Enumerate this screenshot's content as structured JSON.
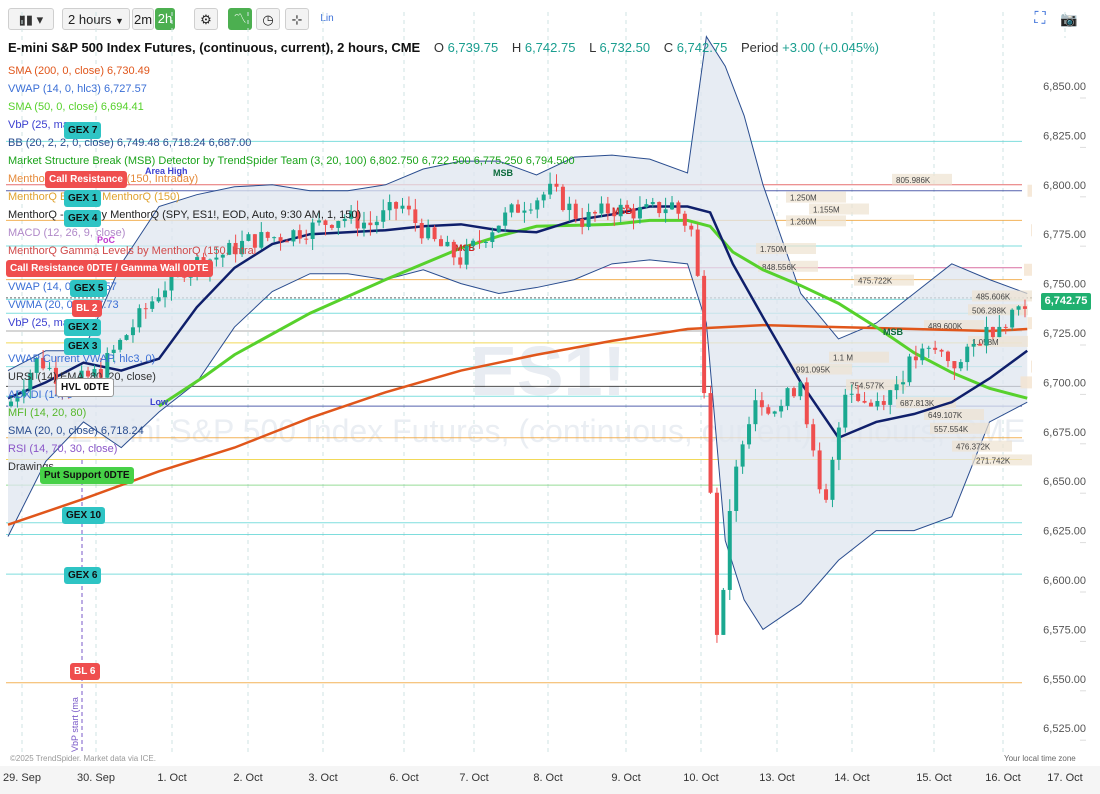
{
  "toolbar": {
    "chart_type_icon": "candles-icon",
    "interval": "2 hours",
    "quick_intervals": [
      "2m",
      "2h"
    ],
    "settings_icon": "gear-icon",
    "tools": [
      "pattern-icon",
      "clock-icon",
      "crosshair-icon"
    ],
    "scale_label": "Lin",
    "expand_icon": "expand-icon",
    "camera_icon": "camera-icon"
  },
  "header": {
    "title": "E-mini S&P 500 Index Futures, (continuous, current), 2 hours, CME",
    "o_label": "O",
    "o_value": "6,739.75",
    "h_label": "H",
    "h_value": "6,742.75",
    "l_label": "L",
    "l_value": "6,732.50",
    "c_label": "C",
    "c_value": "6,742.75",
    "period_label": "Period",
    "period_value": "+3.00 (+0.045%)"
  },
  "legend": [
    {
      "text": "SMA (200, 0, close)",
      "value": "6,730.49",
      "color": "#e0561b"
    },
    {
      "text": "VWAP (14, 0, hlc3)",
      "value": "6,727.57",
      "color": "#3b6fd6"
    },
    {
      "text": "SMA (50, 0, close)",
      "value": "6,694.41",
      "color": "#57d12c"
    },
    {
      "text": "VbP (25, ma",
      "value": "",
      "color": "#3b3fd0"
    },
    {
      "text": "BB (20, 2, 2, 0, close)",
      "value": "6,749.48 6,718.24 6,687.00",
      "color": "#2a4d8f"
    },
    {
      "text": "Market Structure Break (MSB) Detector by TrendSpider Team (3, 20, 100)",
      "value": "6,802.750 6,722.500 6,775.250 6,794.500",
      "color": "#1aa31a"
    },
    {
      "text": "MenthorQ",
      "value": "by MenthorQ (150, Intraday)",
      "color": "#e58a3a"
    },
    {
      "text": "MenthorQ Bl",
      "value": "es by MenthorQ (150)",
      "color": "#e0a330"
    },
    {
      "text": "MenthorQ -",
      "value": "sions by MenthorQ (SPY, ES1!, EOD, Auto, 9:30 AM, 1, 150)",
      "color": "#222222"
    },
    {
      "text": "MACD (12, 26, 9, close)",
      "value": "",
      "color": "#b088c8"
    },
    {
      "text": "MenthorQ Gamma Levels by MenthorQ (150, Intra",
      "value": "",
      "color": "#d04a4a"
    },
    {
      "text": "",
      "value": "",
      "color": "#333"
    },
    {
      "text": "VWAP (14, 0",
      "value": "6,727.57",
      "color": "#3b6fd6"
    },
    {
      "text": "VWMA (20, 0",
      "value": "6,717.73",
      "color": "#3b6fd6"
    },
    {
      "text": "VbP (25, ma",
      "value": "",
      "color": "#3b3fd0"
    },
    {
      "text": "",
      "value": "",
      "color": "#333"
    },
    {
      "text": "VWAP",
      "value": "Current VWAP, hlc3, 0)",
      "color": "#3b6fd6"
    },
    {
      "text": "URSI (14)",
      "value": "EMA, 80, 20, close)",
      "color": "#333"
    },
    {
      "text": "ADXDI (14, 3",
      "value": "",
      "color": "#3b6fd6"
    },
    {
      "text": "MFI (14, 20, 80)",
      "value": "",
      "color": "#57b82c"
    },
    {
      "text": "SMA (20, 0, close)",
      "value": "6,718.24",
      "color": "#2a4d8f"
    },
    {
      "text": "RSI (14, 70, 30, close)",
      "value": "",
      "color": "#8a55c8"
    },
    {
      "text": "Drawings",
      "value": "",
      "color": "#333"
    }
  ],
  "level_labels": [
    {
      "text": "GEX 7",
      "bg": "#2ec4c4",
      "fg": "#111"
    },
    {
      "text": "Call Resistance",
      "bg": "#ef4e4e",
      "fg": "#fff"
    },
    {
      "text": "GEX 1",
      "bg": "#2ec4c4",
      "fg": "#111"
    },
    {
      "text": "GEX 4",
      "bg": "#2ec4c4",
      "fg": "#111"
    },
    {
      "text": "Call Resistance 0DTE / Gamma Wall 0DTE",
      "bg": "#ef4e4e",
      "fg": "#fff"
    },
    {
      "text": "GEX 5",
      "bg": "#2ec4c4",
      "fg": "#111"
    },
    {
      "text": "BL 2",
      "bg": "#ef4e4e",
      "fg": "#fff"
    },
    {
      "text": "GEX 2",
      "bg": "#2ec4c4",
      "fg": "#111"
    },
    {
      "text": "GEX 3",
      "bg": "#2ec4c4",
      "fg": "#111"
    },
    {
      "text": "HVL 0DTE",
      "bg": "#ffffff",
      "fg": "#111"
    },
    {
      "text": "Put Support 0DTE",
      "bg": "#47d147",
      "fg": "#111"
    },
    {
      "text": "GEX 10",
      "bg": "#2ec4c4",
      "fg": "#111"
    },
    {
      "text": "GEX 6",
      "bg": "#2ec4c4",
      "fg": "#111"
    },
    {
      "text": "BL 6",
      "bg": "#ef4e4e",
      "fg": "#fff"
    }
  ],
  "annotations": {
    "area_high": "Area High",
    "poc": "PoC",
    "msb": "MSB",
    "low": "Low",
    "watermark": "ES1!",
    "watermark_sub": "E-mini S&P 500 Index Futures, (continuous, current), 2 hours, CME",
    "vbp_start": "VbP start (ma",
    "copyright": "©2025 TrendSpider. Market data via ICE.",
    "local_time": "Your local time zone"
  },
  "volume_labels": [
    "805.986K",
    "1.250M",
    "1.155M",
    "1.260M",
    "1.750M",
    "848.556K",
    "475.722K",
    "485.606K",
    "506.288K",
    "489.600K",
    "1.058M",
    "1.1 M",
    "991.095K",
    "754.577K",
    "687.813K",
    "649.107K",
    "557.554K",
    "476.372K",
    "271.742K"
  ],
  "last_price": "6,742.75",
  "colors": {
    "up": "#1aa890",
    "down": "#ef4e4e",
    "sma200": "#e0561b",
    "sma50": "#57d12c",
    "sma20": "#0f1f6b",
    "bb": "#2a4d8f",
    "vwap": "#3b6fd6",
    "price_tag": "#20b070"
  },
  "chart_data": {
    "type": "line",
    "title": "E-mini S&P 500 Index Futures, (continuous, current), 2 hours, CME",
    "x_tick_labels": [
      "29. Sep",
      "30. Sep",
      "1. Oct",
      "2. Oct",
      "3. Oct",
      "6. Oct",
      "7. Oct",
      "8. Oct",
      "9. Oct",
      "10. Oct",
      "13. Oct",
      "14. Oct",
      "15. Oct",
      "16. Oct",
      "17. Oct"
    ],
    "y_tick_labels": [
      "6,850.00",
      "6,825.00",
      "6,800.00",
      "6,775.00",
      "6,750.00",
      "6,725.00",
      "6,700.00",
      "6,675.00",
      "6,650.00",
      "6,625.00",
      "6,600.00",
      "6,575.00",
      "6,550.00",
      "6,525.00"
    ],
    "ylim": [
      6520,
      6870
    ],
    "xlim": [
      0,
      14.5
    ],
    "series": [
      {
        "name": "SMA (200, 0, close)",
        "x": [
          0,
          1,
          2,
          3,
          4,
          5,
          6,
          7,
          8,
          9,
          10,
          11,
          12,
          13,
          13.5
        ],
        "values": [
          6628,
          6641,
          6655,
          6667,
          6682,
          6695,
          6706,
          6714,
          6721,
          6727,
          6729,
          6728,
          6727,
          6726,
          6727
        ]
      },
      {
        "name": "SMA (50, 0, close)",
        "x": [
          2,
          2.6,
          3,
          4,
          5,
          6,
          6.5,
          7,
          8,
          8.5,
          9,
          9.3,
          9.6,
          10,
          10.5,
          11,
          11.5,
          12,
          12.5,
          13,
          13.5
        ],
        "values": [
          6688,
          6703,
          6714,
          6735,
          6752,
          6768,
          6774,
          6779,
          6780,
          6782,
          6782,
          6779,
          6766,
          6757,
          6749,
          6740,
          6728,
          6715,
          6705,
          6697,
          6692
        ]
      },
      {
        "name": "SMA (20, 0, close)",
        "x": [
          0,
          0.5,
          1,
          1.5,
          2,
          2.5,
          3,
          3.5,
          4,
          4.5,
          5,
          5.5,
          6,
          6.5,
          7,
          7.5,
          8,
          8.5,
          9,
          9.3,
          9.6,
          10,
          10.5,
          11,
          11.5,
          12,
          12.5,
          13,
          13.5
        ],
        "values": [
          6692,
          6700,
          6710,
          6706,
          6712,
          6738,
          6758,
          6770,
          6775,
          6776,
          6777,
          6779,
          6780,
          6777,
          6776,
          6782,
          6785,
          6789,
          6789,
          6786,
          6760,
          6733,
          6700,
          6672,
          6680,
          6684,
          6690,
          6702,
          6716
        ]
      },
      {
        "name": "Close",
        "x": [
          0,
          0.4,
          0.8,
          1.2,
          1.6,
          2,
          2.4,
          2.8,
          3.2,
          3.6,
          4,
          4.4,
          4.8,
          5.2,
          5.6,
          6,
          6.4,
          6.8,
          7.2,
          7.6,
          8,
          8.4,
          8.8,
          9.1,
          9.3,
          9.5,
          9.7,
          9.9,
          10.2,
          10.5,
          10.8,
          11.1,
          11.4,
          11.7,
          12,
          12.3,
          12.6,
          12.9,
          13.2,
          13.5
        ],
        "values": [
          6688,
          6712,
          6698,
          6705,
          6726,
          6746,
          6760,
          6764,
          6772,
          6774,
          6778,
          6784,
          6780,
          6790,
          6772,
          6762,
          6778,
          6790,
          6797,
          6782,
          6788,
          6786,
          6790,
          6774,
          6650,
          6615,
          6670,
          6693,
          6686,
          6702,
          6630,
          6700,
          6688,
          6696,
          6712,
          6716,
          6708,
          6724,
          6732,
          6743
        ]
      },
      {
        "name": "BB upper",
        "x": [
          0,
          0.5,
          1,
          1.5,
          2,
          2.5,
          3,
          3.5,
          4,
          4.5,
          5,
          5.5,
          6,
          6.5,
          7,
          7.5,
          8,
          8.5,
          9,
          9.25,
          9.5,
          9.75,
          10,
          10.5,
          11,
          11.5,
          12,
          12.5,
          13,
          13.5
        ],
        "values": [
          6706,
          6716,
          6716,
          6760,
          6789,
          6795,
          6799,
          6800,
          6797,
          6797,
          6800,
          6808,
          6812,
          6812,
          6805,
          6814,
          6815,
          6813,
          6806,
          6875,
          6860,
          6835,
          6800,
          6745,
          6722,
          6730,
          6745,
          6760,
          6752,
          6745
        ]
      },
      {
        "name": "BB lower",
        "x": [
          0,
          0.5,
          1,
          1.5,
          2,
          2.5,
          3,
          3.5,
          4,
          4.5,
          5,
          5.5,
          6,
          6.5,
          7,
          7.5,
          8,
          8.5,
          9,
          9.25,
          9.5,
          9.75,
          10,
          10.5,
          11,
          11.5,
          12,
          12.5,
          13,
          13.5
        ],
        "values": [
          6622,
          6660,
          6680,
          6667,
          6685,
          6700,
          6728,
          6746,
          6755,
          6755,
          6752,
          6757,
          6750,
          6745,
          6748,
          6752,
          6760,
          6762,
          6760,
          6730,
          6620,
          6590,
          6575,
          6588,
          6610,
          6625,
          6625,
          6632,
          6680,
          6690
        ]
      }
    ],
    "horizontal_levels": [
      6822,
      6800,
      6797,
      6782,
      6769,
      6758,
      6752,
      6742,
      6735,
      6726,
      6720,
      6708,
      6698,
      6693,
      6688,
      6672,
      6661,
      6648,
      6629,
      6623,
      6603,
      6548
    ],
    "grid": true,
    "legend_position": "top-left"
  }
}
